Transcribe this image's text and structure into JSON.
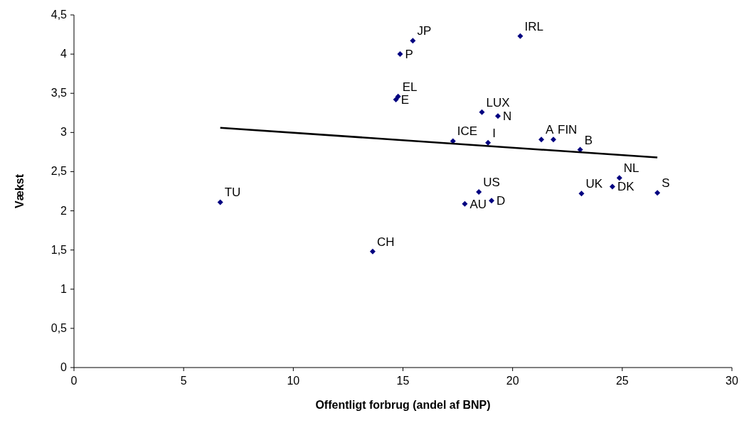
{
  "chart_data": {
    "type": "scatter",
    "xlabel": "Offentligt forbrug (andel af BNP)",
    "ylabel": "Vækst",
    "xlim": [
      0,
      30
    ],
    "xticks": [
      0,
      5,
      10,
      15,
      20,
      25,
      30
    ],
    "ylim": [
      0,
      4.5
    ],
    "yticks": [
      0,
      {
        "value": 0.5,
        "label": "0,5"
      },
      1,
      {
        "value": 1.5,
        "label": "1,5"
      },
      2,
      {
        "value": 2.5,
        "label": "2,5"
      },
      3,
      {
        "value": 3.5,
        "label": "3,5"
      },
      4,
      {
        "value": 4.5,
        "label": "4,5"
      }
    ],
    "grid": false,
    "marker": "diamond",
    "series": [
      {
        "type": "scatter",
        "color": "#000080",
        "x": [
          6.67,
          13.62,
          14.87,
          15.45,
          14.78,
          14.68,
          20.35,
          18.6,
          19.33,
          18.88,
          17.28,
          21.31,
          21.86,
          23.08,
          24.87,
          24.55,
          23.14,
          26.6,
          18.46,
          17.82,
          19.04
        ],
        "values": [
          2.11,
          1.48,
          4.0,
          4.17,
          3.46,
          3.42,
          4.23,
          3.26,
          3.21,
          2.87,
          2.89,
          2.91,
          2.91,
          2.78,
          2.42,
          2.31,
          2.22,
          2.23,
          2.24,
          2.09,
          2.13
        ],
        "value_labels": [
          "TU",
          "CH",
          "P",
          "JP",
          "EL",
          "E",
          "IRL",
          "LUX",
          "N",
          "I",
          "ICE",
          "A",
          "FIN",
          "B",
          "NL",
          "DK",
          "UK",
          "S",
          "US",
          "AU",
          "D"
        ]
      },
      {
        "type": "line",
        "color": "#000000",
        "marker": "none",
        "line_style": "solid",
        "x": [
          6.67,
          26.6
        ],
        "values": [
          3.06,
          2.68
        ]
      }
    ]
  }
}
